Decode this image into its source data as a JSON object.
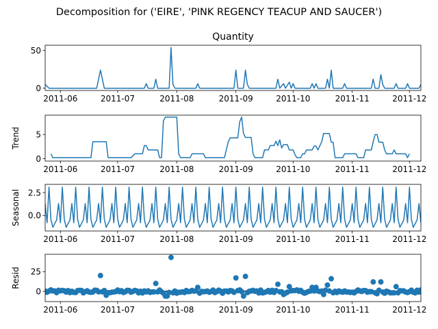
{
  "figure": {
    "suptitle": "Decomposition for ('EIRE', 'PINK REGENCY TEACUP AND SAUCER')"
  },
  "colors": {
    "line": "#1f77b4",
    "axis": "#000000",
    "zero_line": "#000000"
  },
  "chart_data": [
    {
      "type": "line",
      "title": "Quantity",
      "ylabel": "",
      "xlim": [
        "2011-05-24",
        "2011-12-07"
      ],
      "ylim": [
        -3,
        57
      ],
      "yticks": [
        0,
        50
      ],
      "xtick_labels": [
        "2011-06",
        "2011-07",
        "2011-08",
        "2011-09",
        "2011-10",
        "2011-11",
        "2011-12"
      ],
      "grid": false,
      "series": [
        {
          "points": [
            [
              "2011-05-24",
              5
            ],
            [
              "2011-05-26",
              0
            ],
            [
              "2011-06-20",
              0
            ],
            [
              "2011-06-22",
              24
            ],
            [
              "2011-06-24",
              0
            ],
            [
              "2011-07-15",
              0
            ],
            [
              "2011-07-16",
              6
            ],
            [
              "2011-07-17",
              0
            ],
            [
              "2011-07-20",
              0
            ],
            [
              "2011-07-21",
              12
            ],
            [
              "2011-07-22",
              0
            ],
            [
              "2011-07-28",
              0
            ],
            [
              "2011-07-29",
              54
            ],
            [
              "2011-07-30",
              5
            ],
            [
              "2011-07-31",
              0
            ],
            [
              "2011-08-11",
              0
            ],
            [
              "2011-08-12",
              6
            ],
            [
              "2011-08-13",
              0
            ],
            [
              "2011-08-31",
              0
            ],
            [
              "2011-09-01",
              24
            ],
            [
              "2011-09-02",
              0
            ],
            [
              "2011-09-05",
              0
            ],
            [
              "2011-09-06",
              24
            ],
            [
              "2011-09-07",
              5
            ],
            [
              "2011-09-08",
              0
            ],
            [
              "2011-09-22",
              0
            ],
            [
              "2011-09-23",
              12
            ],
            [
              "2011-09-24",
              0
            ],
            [
              "2011-09-26",
              6
            ],
            [
              "2011-09-27",
              0
            ],
            [
              "2011-09-29",
              8
            ],
            [
              "2011-09-30",
              0
            ],
            [
              "2011-10-01",
              6
            ],
            [
              "2011-10-02",
              0
            ],
            [
              "2011-10-10",
              0
            ],
            [
              "2011-10-11",
              6
            ],
            [
              "2011-10-12",
              0
            ],
            [
              "2011-10-13",
              6
            ],
            [
              "2011-10-14",
              0
            ],
            [
              "2011-10-18",
              0
            ],
            [
              "2011-10-19",
              12
            ],
            [
              "2011-10-20",
              0
            ],
            [
              "2011-10-21",
              24
            ],
            [
              "2011-10-22",
              0
            ],
            [
              "2011-10-27",
              0
            ],
            [
              "2011-10-28",
              6
            ],
            [
              "2011-10-29",
              0
            ],
            [
              "2011-11-11",
              0
            ],
            [
              "2011-11-12",
              12
            ],
            [
              "2011-11-13",
              0
            ],
            [
              "2011-11-15",
              0
            ],
            [
              "2011-11-16",
              18
            ],
            [
              "2011-11-17",
              5
            ],
            [
              "2011-11-18",
              0
            ],
            [
              "2011-11-23",
              0
            ],
            [
              "2011-11-24",
              6
            ],
            [
              "2011-11-25",
              0
            ],
            [
              "2011-11-29",
              0
            ],
            [
              "2011-11-30",
              6
            ],
            [
              "2011-12-01",
              0
            ],
            [
              "2011-12-06",
              0
            ],
            [
              "2011-12-07",
              5
            ]
          ]
        }
      ]
    },
    {
      "type": "line",
      "title": "",
      "ylabel": "Trend",
      "xlim": [
        "2011-05-24",
        "2011-12-07"
      ],
      "ylim": [
        -0.5,
        9
      ],
      "yticks": [
        0,
        5
      ],
      "xtick_labels": [
        "2011-06",
        "2011-07",
        "2011-08",
        "2011-09",
        "2011-10",
        "2011-11",
        "2011-12"
      ],
      "grid": false,
      "series": [
        {
          "points": [
            [
              "2011-05-27",
              1
            ],
            [
              "2011-05-28",
              0.2
            ],
            [
              "2011-06-17",
              0.2
            ],
            [
              "2011-06-18",
              3.5
            ],
            [
              "2011-06-25",
              3.5
            ],
            [
              "2011-06-26",
              0.2
            ],
            [
              "2011-07-08",
              0.2
            ],
            [
              "2011-07-10",
              1
            ],
            [
              "2011-07-14",
              1
            ],
            [
              "2011-07-15",
              2.7
            ],
            [
              "2011-07-16",
              2.7
            ],
            [
              "2011-07-17",
              1.8
            ],
            [
              "2011-07-22",
              1.8
            ],
            [
              "2011-07-23",
              0.2
            ],
            [
              "2011-07-24",
              0.2
            ],
            [
              "2011-07-25",
              7.8
            ],
            [
              "2011-07-26",
              8.6
            ],
            [
              "2011-08-01",
              8.6
            ],
            [
              "2011-08-02",
              1
            ],
            [
              "2011-08-03",
              0.2
            ],
            [
              "2011-08-08",
              0.2
            ],
            [
              "2011-08-09",
              1
            ],
            [
              "2011-08-15",
              1
            ],
            [
              "2011-08-16",
              0.2
            ],
            [
              "2011-08-26",
              0.2
            ],
            [
              "2011-08-28",
              3.5
            ],
            [
              "2011-08-29",
              4.3
            ],
            [
              "2011-09-02",
              4.3
            ],
            [
              "2011-09-03",
              7.6
            ],
            [
              "2011-09-04",
              8.6
            ],
            [
              "2011-09-05",
              5.2
            ],
            [
              "2011-09-06",
              4.4
            ],
            [
              "2011-09-09",
              4.4
            ],
            [
              "2011-09-10",
              1
            ],
            [
              "2011-09-11",
              0.2
            ],
            [
              "2011-09-15",
              0.2
            ],
            [
              "2011-09-16",
              1.8
            ],
            [
              "2011-09-18",
              1.8
            ],
            [
              "2011-09-19",
              2.7
            ],
            [
              "2011-09-21",
              2.7
            ],
            [
              "2011-09-22",
              3.6
            ],
            [
              "2011-09-23",
              2.7
            ],
            [
              "2011-09-24",
              3.9
            ],
            [
              "2011-09-25",
              2.2
            ],
            [
              "2011-09-26",
              2.9
            ],
            [
              "2011-09-28",
              2.9
            ],
            [
              "2011-09-29",
              1.8
            ],
            [
              "2011-10-01",
              1.8
            ],
            [
              "2011-10-02",
              0.8
            ],
            [
              "2011-10-03",
              0.2
            ],
            [
              "2011-10-05",
              0.2
            ],
            [
              "2011-10-06",
              1
            ],
            [
              "2011-10-07",
              1
            ],
            [
              "2011-10-08",
              1.8
            ],
            [
              "2011-10-11",
              1.8
            ],
            [
              "2011-10-12",
              2.6
            ],
            [
              "2011-10-13",
              2.6
            ],
            [
              "2011-10-14",
              1.8
            ],
            [
              "2011-10-16",
              3.5
            ],
            [
              "2011-10-17",
              5.2
            ],
            [
              "2011-10-20",
              5.2
            ],
            [
              "2011-10-21",
              3.4
            ],
            [
              "2011-10-22",
              3.4
            ],
            [
              "2011-10-23",
              0.2
            ],
            [
              "2011-10-27",
              0.2
            ],
            [
              "2011-10-28",
              1
            ],
            [
              "2011-11-03",
              1
            ],
            [
              "2011-11-04",
              0.2
            ],
            [
              "2011-11-07",
              0.2
            ],
            [
              "2011-11-08",
              1.8
            ],
            [
              "2011-11-11",
              1.8
            ],
            [
              "2011-11-12",
              3.5
            ],
            [
              "2011-11-13",
              5
            ],
            [
              "2011-11-14",
              5
            ],
            [
              "2011-11-15",
              3.4
            ],
            [
              "2011-11-17",
              3.4
            ],
            [
              "2011-11-18",
              1.8
            ],
            [
              "2011-11-19",
              1
            ],
            [
              "2011-11-22",
              1
            ],
            [
              "2011-11-23",
              1.8
            ],
            [
              "2011-11-24",
              1
            ],
            [
              "2011-11-29",
              1
            ],
            [
              "2011-11-30",
              0.2
            ],
            [
              "2011-12-01",
              1
            ]
          ]
        }
      ]
    },
    {
      "type": "line",
      "title": "",
      "ylabel": "Seasonal",
      "xlim": [
        "2011-05-24",
        "2011-12-07"
      ],
      "ylim": [
        -1.7,
        3.4
      ],
      "yticks": [
        -0.0,
        2.5
      ],
      "ytick_labels": [
        "0.0",
        "2.5"
      ],
      "xtick_labels": [
        "2011-06",
        "2011-07",
        "2011-08",
        "2011-09",
        "2011-10",
        "2011-11",
        "2011-12"
      ],
      "grid": false,
      "period_days": 7,
      "first_date": "2011-05-24",
      "last_date": "2011-12-07",
      "weekly_pattern": [
        1.3,
        -0.8,
        3.1,
        -0.4,
        -1.3,
        -0.9,
        -0.5
      ]
    },
    {
      "type": "scatter",
      "title": "",
      "ylabel": "Resid",
      "xlim": [
        "2011-05-24",
        "2011-12-07"
      ],
      "ylim": [
        -13,
        47
      ],
      "yticks": [
        0,
        25
      ],
      "xtick_labels": [
        "2011-06",
        "2011-07",
        "2011-08",
        "2011-09",
        "2011-10",
        "2011-11",
        "2011-12"
      ],
      "grid": false,
      "zero_line": 0,
      "residual_noise_range": [
        -4,
        3
      ],
      "outliers": [
        [
          "2011-06-22",
          20
        ],
        [
          "2011-07-21",
          10
        ],
        [
          "2011-07-29",
          43
        ],
        [
          "2011-07-26",
          -6
        ],
        [
          "2011-07-27",
          -6
        ],
        [
          "2011-08-12",
          5
        ],
        [
          "2011-09-01",
          17
        ],
        [
          "2011-09-06",
          19
        ],
        [
          "2011-09-23",
          9
        ],
        [
          "2011-09-29",
          6
        ],
        [
          "2011-10-11",
          5
        ],
        [
          "2011-10-13",
          5
        ],
        [
          "2011-10-19",
          8
        ],
        [
          "2011-10-21",
          16
        ],
        [
          "2011-11-12",
          12
        ],
        [
          "2011-11-16",
          12
        ],
        [
          "2011-11-24",
          6
        ],
        [
          "2011-06-25",
          -5
        ],
        [
          "2011-09-05",
          -6
        ],
        [
          "2011-09-26",
          -4
        ],
        [
          "2011-10-17",
          -4
        ],
        [
          "2011-11-14",
          -3
        ]
      ]
    }
  ]
}
